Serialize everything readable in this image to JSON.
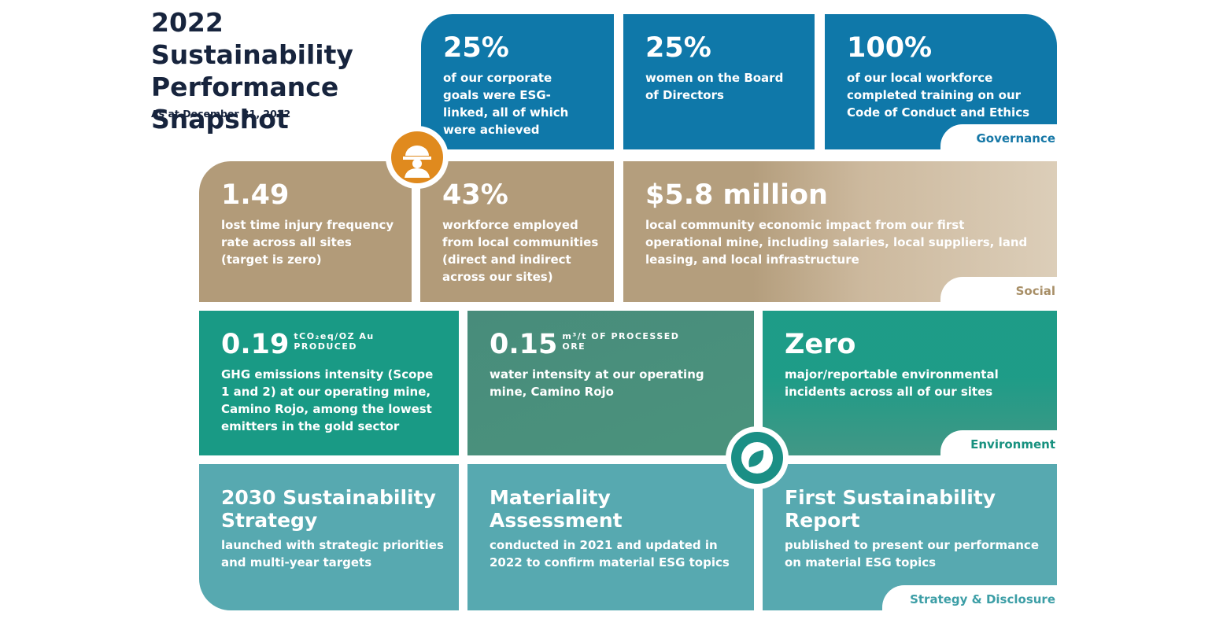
{
  "header": {
    "title": "2022 Sustainability Performance Snapshot",
    "subtitle": "As at December 31, 2022"
  },
  "sections": [
    {
      "label": "Governance",
      "cards": [
        {
          "headline": "25%",
          "text": "of our corporate goals were ESG-linked, all of which were achieved"
        },
        {
          "headline": "25%",
          "text": "women on the Board of Directors"
        },
        {
          "headline": "100%",
          "text": "of our local workforce completed training on our Code of Conduct and Ethics"
        }
      ]
    },
    {
      "label": "Social",
      "cards": [
        {
          "headline": "1.49",
          "text": "lost time injury frequency rate across all sites (target is zero)"
        },
        {
          "headline": "43%",
          "text": "workforce employed from local communities (direct and indirect across our sites)"
        },
        {
          "headline": "$5.8 million",
          "text": "local community economic impact from our first operational mine, including salaries, local suppliers, land leasing, and local infrastructure"
        }
      ]
    },
    {
      "label": "Environment",
      "cards": [
        {
          "headline": "0.19",
          "unit": "tCO₂eq/OZ Au PRODUCED",
          "text": "GHG emissions intensity (Scope 1 and 2) at our operating mine, Camino Rojo, among the lowest emitters in the gold sector"
        },
        {
          "headline": "0.15",
          "unit": "m³/t OF PROCESSED ORE",
          "text": "water intensity at our operating mine, Camino Rojo"
        },
        {
          "headline": "Zero",
          "text": "major/reportable environmental incidents across all of our sites"
        }
      ]
    },
    {
      "label": "Strategy & Disclosure",
      "cards": [
        {
          "headline": "2030 Sustainability Strategy",
          "text": "launched with strategic priorities and multi-year targets"
        },
        {
          "headline": "Materiality Assessment",
          "text": "conducted in 2021 and updated in 2022 to confirm material ESG topics"
        },
        {
          "headline": "First Sustainability Report",
          "text": "published to present our performance on material ESG topics"
        }
      ]
    }
  ]
}
